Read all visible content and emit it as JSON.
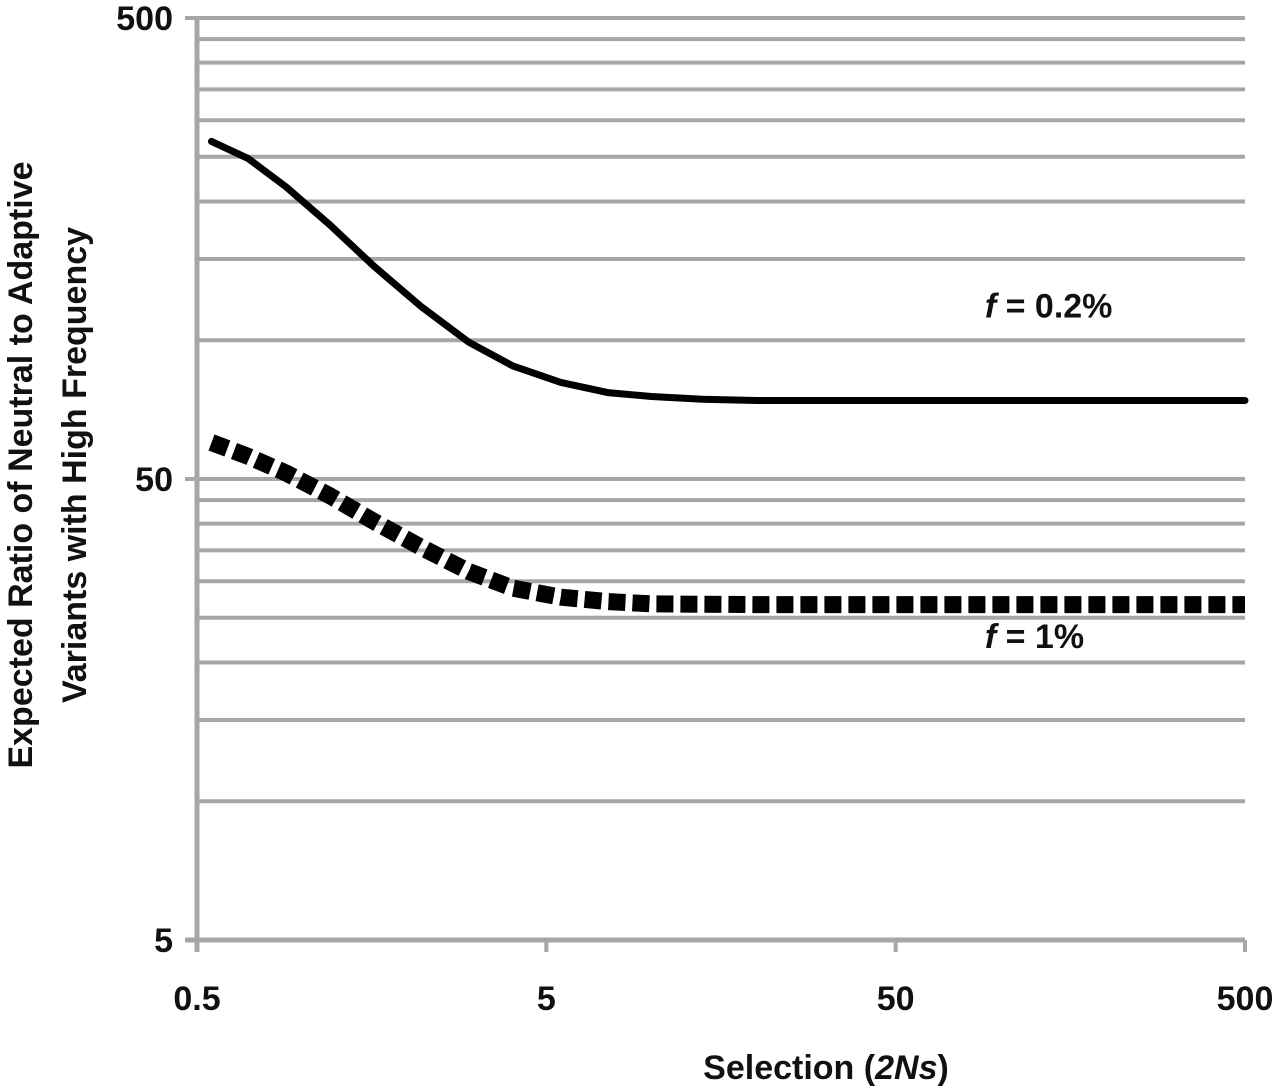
{
  "chart_data": {
    "type": "line",
    "xlabel": {
      "prefix": "Selection (",
      "italic": "2Ns",
      "suffix": ")"
    },
    "ylabel": [
      "Expected Ratio of Neutral to Adaptive",
      "Variants with High Frequency"
    ],
    "x_scale": "log",
    "y_scale": "log",
    "xlim": [
      0.5,
      500
    ],
    "ylim": [
      5,
      500
    ],
    "x_ticks": [
      "0.5",
      "5",
      "50",
      "500"
    ],
    "y_ticks": [
      "5",
      "50",
      "500"
    ],
    "grid": true,
    "series": [
      {
        "name": "f = 0.2%",
        "label_italic": "f",
        "label_rest": " = 0.2%",
        "style": "solid",
        "color": "#000000",
        "points": [
          [
            0.55,
            270
          ],
          [
            0.7,
            248
          ],
          [
            0.9,
            215
          ],
          [
            1.2,
            178
          ],
          [
            1.6,
            145
          ],
          [
            2.2,
            118
          ],
          [
            3.0,
            99
          ],
          [
            4.0,
            88
          ],
          [
            5.5,
            81
          ],
          [
            7.5,
            77
          ],
          [
            10,
            75.5
          ],
          [
            14,
            74.5
          ],
          [
            20,
            74
          ],
          [
            50,
            74
          ],
          [
            100,
            74
          ],
          [
            200,
            74
          ],
          [
            500,
            74
          ]
        ]
      },
      {
        "name": "f = 1%",
        "label_italic": "f",
        "label_rest": " = 1%",
        "style": "dashed",
        "color": "#000000",
        "points": [
          [
            0.55,
            60
          ],
          [
            0.7,
            56
          ],
          [
            0.9,
            51.5
          ],
          [
            1.2,
            46
          ],
          [
            1.6,
            40.5
          ],
          [
            2.2,
            35.5
          ],
          [
            3.0,
            31.5
          ],
          [
            4.0,
            29
          ],
          [
            5.5,
            27.7
          ],
          [
            7.5,
            27.1
          ],
          [
            10,
            26.8
          ],
          [
            20,
            26.7
          ],
          [
            50,
            26.7
          ],
          [
            100,
            26.7
          ],
          [
            200,
            26.7
          ],
          [
            500,
            26.7
          ]
        ]
      }
    ],
    "annotations": [
      {
        "series": 0,
        "x": 90,
        "y": 112
      },
      {
        "series": 1,
        "x": 90,
        "y": 21.5
      }
    ]
  }
}
